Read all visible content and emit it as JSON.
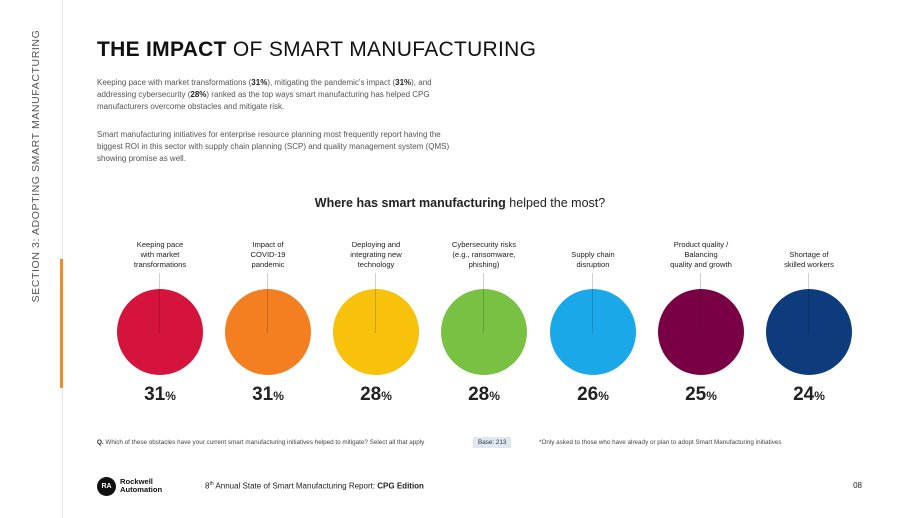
{
  "sidebar": {
    "section_label": "SECTION 3: ADOPTING SMART MANUFACTURING"
  },
  "header": {
    "title_bold": "THE IMPACT",
    "title_rest": "OF SMART MANUFACTURING"
  },
  "intro": {
    "p1_a": "Keeping pace with market transformations (",
    "p1_v1": "31%",
    "p1_b": "), mitigating the pandemic's impact (",
    "p1_v2": "31%",
    "p1_c": "), and addressing cybersecurity (",
    "p1_v3": "28%",
    "p1_d": ") ranked as the top ways smart manufacturing has helped CPG manufacturers overcome obstacles and mitigate risk.",
    "p2": "Smart manufacturing initiatives for enterprise resource planning most frequently report having the biggest ROI in this sector with supply chain planning (SCP) and quality management system (QMS) showing promise as well."
  },
  "chart_heading": {
    "bold": "Where has smart manufacturing",
    "rest": "helped the most?"
  },
  "chart_data": {
    "type": "bubble",
    "title": "Where has smart manufacturing helped the most?",
    "categories": [
      "Keeping pace with market transformations",
      "Impact of COVID-19 pandemic",
      "Deploying and integrating new technology",
      "Cybersecurity risks (e.g., ransomware, phishing)",
      "Supply chain disruption",
      "Product quality / Balancing quality and growth",
      "Shortage of skilled workers"
    ],
    "values": [
      31,
      31,
      28,
      28,
      26,
      25,
      24
    ],
    "unit": "%",
    "colors": [
      "#d4143c",
      "#f47f20",
      "#f8c10b",
      "#79c143",
      "#1ba8e8",
      "#7a0045",
      "#0d3b7b"
    ]
  },
  "chart_labels": [
    [
      "Keeping pace",
      "with market",
      "transformations"
    ],
    [
      "Impact of",
      "COVID-19",
      "pandemic"
    ],
    [
      "Deploying and",
      "integrating new",
      "technology"
    ],
    [
      "Cybersecurity risks",
      "(e.g., ransomware,",
      "phishing)"
    ],
    [
      "Supply chain",
      "disruption"
    ],
    [
      "Product quality /",
      "Balancing",
      "quality and growth"
    ],
    [
      "Shortage of",
      "skilled workers"
    ]
  ],
  "footer": {
    "question_label": "Q.",
    "question": "Which of these obstacles have your current smart manufacturing initiatives helped to mitigate? Select all that apply",
    "base": "Base: 213",
    "note": "*Only asked to those who have already or plan to adopt Smart Manufacturing initiatives",
    "logo_mark": "RA",
    "logo_line1": "Rockwell",
    "logo_line2": "Automation",
    "report_pre": "8",
    "report_sup": "th",
    "report_mid": " Annual State of Smart Manufacturing Report: ",
    "report_bold": "CPG Edition",
    "page_number": "08"
  }
}
